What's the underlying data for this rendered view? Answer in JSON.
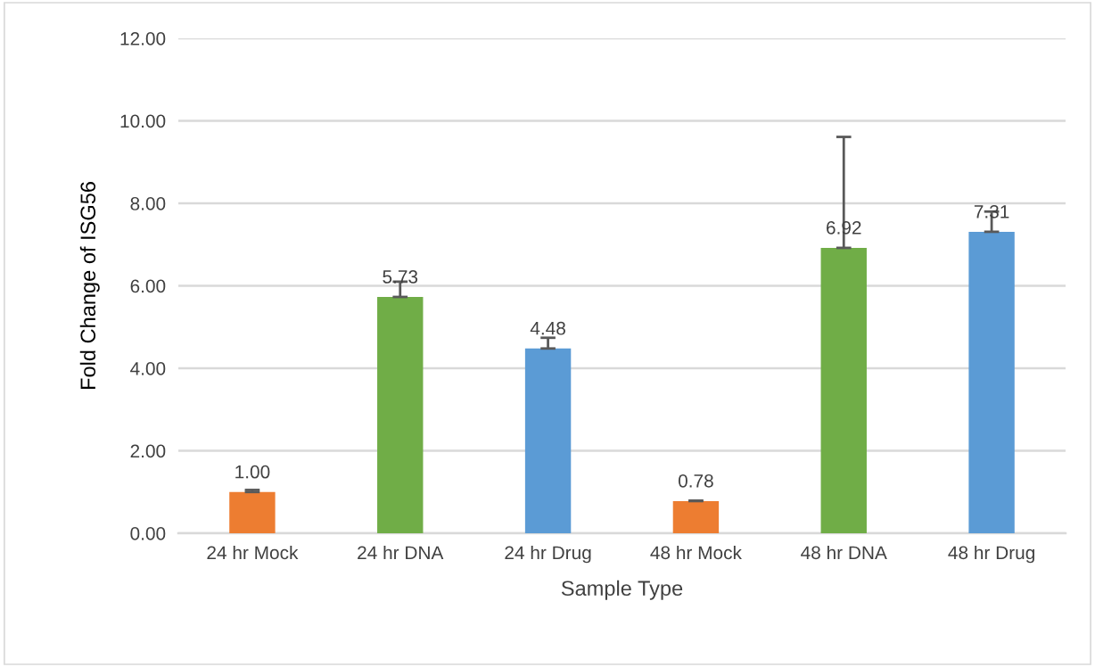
{
  "chart_data": {
    "type": "bar",
    "xlabel": "Sample Type",
    "ylabel": "Fold Change of ISG56",
    "categories": [
      "24 hr Mock",
      "24 hr DNA",
      "24 hr Drug",
      "48 hr Mock",
      "48 hr DNA",
      "48 hr Drug"
    ],
    "values": [
      1.0,
      5.73,
      4.48,
      0.78,
      6.92,
      7.31
    ],
    "colors": [
      "#ed7d31",
      "#70ad47",
      "#5b9bd5",
      "#ed7d31",
      "#70ad47",
      "#5b9bd5"
    ],
    "errors": [
      [
        1.0,
        1.05
      ],
      [
        5.73,
        6.1
      ],
      [
        4.48,
        4.74
      ],
      [
        0.78,
        0.79
      ],
      [
        6.92,
        9.61
      ],
      [
        7.31,
        7.8
      ]
    ],
    "value_labels": [
      "1.00",
      "5.73",
      "4.48",
      "0.78",
      "6.92",
      "7.31"
    ],
    "ylim": [
      0,
      12
    ],
    "yticks": [
      {
        "value": 0,
        "label": "0.00"
      },
      {
        "value": 2,
        "label": "2.00"
      },
      {
        "value": 4,
        "label": "4.00"
      },
      {
        "value": 6,
        "label": "6.00"
      },
      {
        "value": 8,
        "label": "8.00"
      },
      {
        "value": 10,
        "label": "10.00"
      },
      {
        "value": 12,
        "label": "12.00"
      }
    ],
    "grid": "y"
  }
}
